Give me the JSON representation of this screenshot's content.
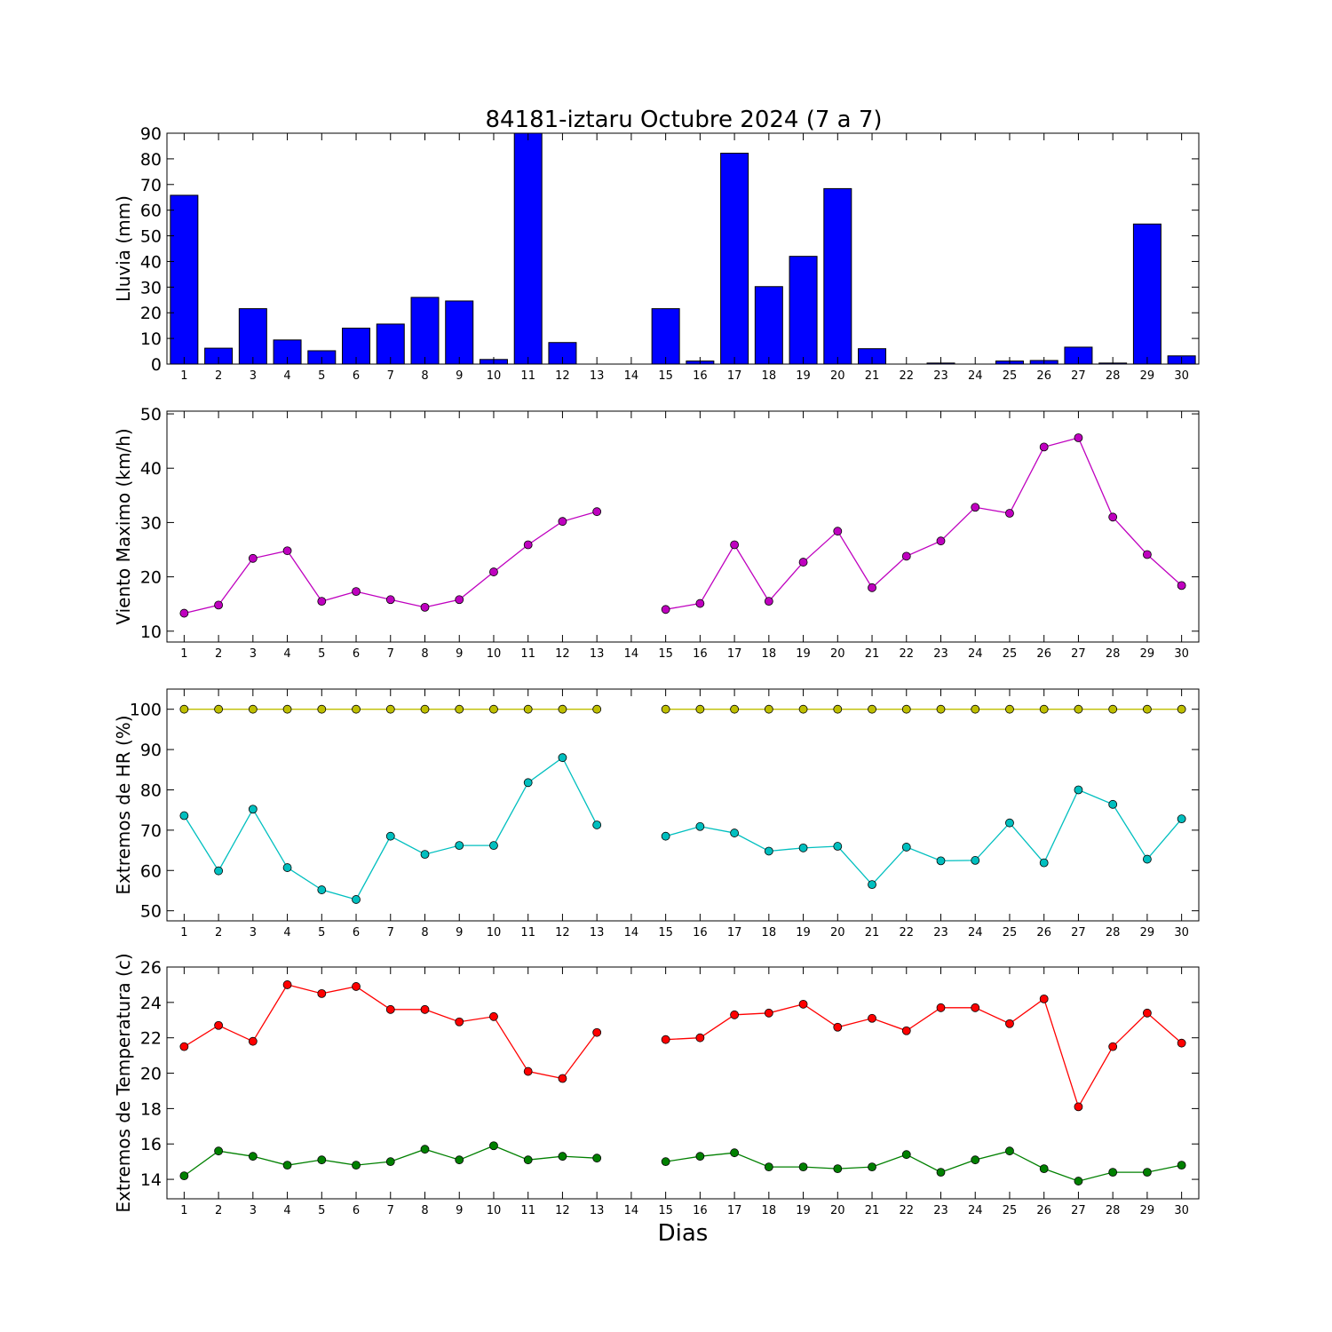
{
  "figure": {
    "title": "84181-iztaru Octubre 2024  (7 a 7)",
    "xlabel": "Dias"
  },
  "chart_data": [
    {
      "type": "bar",
      "ylabel": "Lluvia (mm)",
      "ylim": [
        0,
        90
      ],
      "yticks": [
        0,
        10,
        20,
        30,
        40,
        50,
        60,
        70,
        80,
        90
      ],
      "xlim": [
        0.5,
        30.5
      ],
      "categories": [
        1,
        2,
        3,
        4,
        5,
        6,
        7,
        8,
        9,
        10,
        11,
        12,
        13,
        14,
        15,
        16,
        17,
        18,
        19,
        20,
        21,
        22,
        23,
        24,
        25,
        26,
        27,
        28,
        29,
        30
      ],
      "values": [
        65.8,
        6.2,
        21.6,
        9.4,
        5.2,
        14.0,
        15.6,
        26.0,
        24.6,
        1.8,
        90.0,
        8.4,
        0.0,
        0.0,
        21.6,
        1.2,
        82.2,
        30.2,
        42.0,
        68.4,
        6.0,
        0.0,
        0.4,
        0.0,
        1.2,
        1.4,
        6.6,
        0.4,
        54.6,
        3.2
      ],
      "bar_color": "#0000ff"
    },
    {
      "type": "line",
      "ylabel": "Viento Maximo (km/h)",
      "ylim": [
        8,
        50.5
      ],
      "yticks": [
        10,
        20,
        30,
        40,
        50
      ],
      "xlim": [
        0.5,
        30.5
      ],
      "x": [
        1,
        2,
        3,
        4,
        5,
        6,
        7,
        8,
        9,
        10,
        11,
        12,
        13,
        14,
        15,
        16,
        17,
        18,
        19,
        20,
        21,
        22,
        23,
        24,
        25,
        26,
        27,
        28,
        29,
        30
      ],
      "series": [
        {
          "values": [
            13.3,
            14.8,
            23.4,
            24.8,
            15.5,
            17.3,
            15.8,
            14.4,
            15.8,
            20.9,
            25.9,
            30.2,
            32.0,
            null,
            14.0,
            15.1,
            25.9,
            15.5,
            22.7,
            28.4,
            18.0,
            23.8,
            26.6,
            32.8,
            31.7,
            43.9,
            45.6,
            31.0,
            24.1,
            18.4
          ],
          "color": "#bf00bf"
        }
      ]
    },
    {
      "type": "line",
      "ylabel": "Extremos de HR (%)",
      "ylim": [
        47.5,
        105
      ],
      "yticks": [
        50,
        60,
        70,
        80,
        90,
        100
      ],
      "xlim": [
        0.5,
        30.5
      ],
      "x": [
        1,
        2,
        3,
        4,
        5,
        6,
        7,
        8,
        9,
        10,
        11,
        12,
        13,
        14,
        15,
        16,
        17,
        18,
        19,
        20,
        21,
        22,
        23,
        24,
        25,
        26,
        27,
        28,
        29,
        30
      ],
      "series": [
        {
          "values": [
            100,
            100,
            100,
            100,
            100,
            100,
            100,
            100,
            100,
            100,
            100,
            100,
            100,
            null,
            100,
            100,
            100,
            100,
            100,
            100,
            100,
            100,
            100,
            100,
            100,
            100,
            100,
            100,
            100,
            100
          ],
          "color": "#bfbf00"
        },
        {
          "values": [
            73.6,
            59.9,
            75.2,
            60.7,
            55.2,
            52.8,
            68.5,
            64.0,
            66.2,
            66.2,
            81.8,
            88.0,
            71.3,
            null,
            68.5,
            70.9,
            69.3,
            64.8,
            65.6,
            66.0,
            56.5,
            65.8,
            62.4,
            62.5,
            71.8,
            61.9,
            80.0,
            76.4,
            62.8,
            72.8
          ],
          "color": "#00bfbf"
        }
      ]
    },
    {
      "type": "line",
      "ylabel": "Extremos de Temperatura (c)",
      "ylim": [
        12.9,
        26
      ],
      "yticks": [
        14,
        16,
        18,
        20,
        22,
        24,
        26
      ],
      "xlim": [
        0.5,
        30.5
      ],
      "x": [
        1,
        2,
        3,
        4,
        5,
        6,
        7,
        8,
        9,
        10,
        11,
        12,
        13,
        14,
        15,
        16,
        17,
        18,
        19,
        20,
        21,
        22,
        23,
        24,
        25,
        26,
        27,
        28,
        29,
        30
      ],
      "series": [
        {
          "values": [
            21.5,
            22.7,
            21.8,
            25.0,
            24.5,
            24.9,
            23.6,
            23.6,
            22.9,
            23.2,
            20.1,
            19.7,
            22.3,
            null,
            21.9,
            22.0,
            23.3,
            23.4,
            23.9,
            22.6,
            23.1,
            22.4,
            23.7,
            23.7,
            22.8,
            24.2,
            18.1,
            21.5,
            23.4,
            21.7
          ],
          "color": "#ff0000"
        },
        {
          "values": [
            14.2,
            15.6,
            15.3,
            14.8,
            15.1,
            14.8,
            15.0,
            15.7,
            15.1,
            15.9,
            15.1,
            15.3,
            15.2,
            null,
            15.0,
            15.3,
            15.5,
            14.7,
            14.7,
            14.6,
            14.7,
            15.4,
            14.4,
            15.1,
            15.6,
            14.6,
            13.9,
            14.4,
            14.4,
            14.8
          ],
          "color": "#008000"
        }
      ]
    }
  ]
}
